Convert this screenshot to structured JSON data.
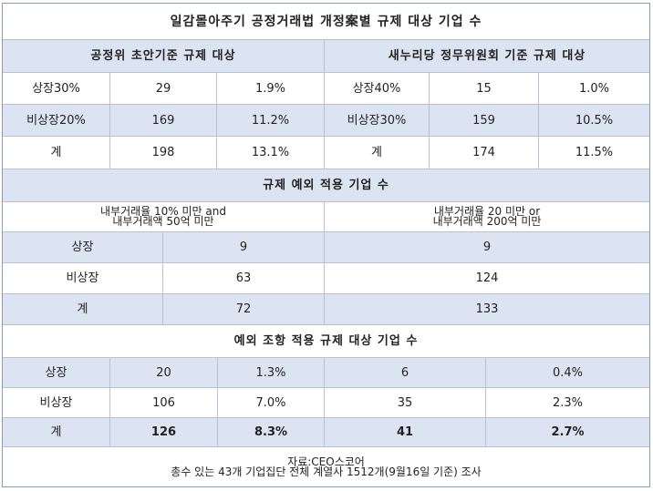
{
  "title": "일감몰아주기 공정거래법 개정案별 규제 대상 기업 수",
  "section1": {
    "left_header": "공정위 초안기준 규제 대상",
    "right_header": "새누리당 정무위원회 기준 규제 대상",
    "rows": [
      {
        "l_label": "상장30%",
        "l_count": "29",
        "l_pct": "1.9%",
        "r_label": "상장40%",
        "r_count": "15",
        "r_pct": "1.0%"
      },
      {
        "l_label": "비상장20%",
        "l_count": "169",
        "l_pct": "11.2%",
        "r_label": "비상장30%",
        "r_count": "159",
        "r_pct": "10.5%"
      },
      {
        "l_label": "계",
        "l_count": "198",
        "l_pct": "13.1%",
        "r_label": "계",
        "r_count": "174",
        "r_pct": "11.5%"
      }
    ]
  },
  "section2": {
    "header": "규제 예외 적용 기업 수",
    "left_sub_line1": "내부거래율 10% 미만 and",
    "left_sub_line2": "내부거래액 50억 미만",
    "right_sub_line1": "내부거래율 20 미만 or",
    "right_sub_line2": "내부거래액 200억  미만",
    "rows": [
      {
        "label": "상장",
        "left": "9",
        "right": "9"
      },
      {
        "label": "비상장",
        "left": "63",
        "right": "124"
      },
      {
        "label": "계",
        "left": "72",
        "right": "133"
      }
    ]
  },
  "section3": {
    "header": "예외 조항 적용 규제 대상 기업 수",
    "rows": [
      {
        "label": "상장",
        "l_count": "20",
        "l_pct": "1.3%",
        "r_count": "6",
        "r_pct": "0.4%"
      },
      {
        "label": "비상장",
        "l_count": "106",
        "l_pct": "7.0%",
        "r_count": "35",
        "r_pct": "2.3%"
      },
      {
        "label": "계",
        "l_count": "126",
        "l_pct": "8.3%",
        "r_count": "41",
        "r_pct": "2.7%"
      }
    ]
  },
  "footnote": {
    "line1": "자료:CEO스코어",
    "line2": "총수 있는 43개 기업집단 전체 계열사 1512개(9월16일 기준) 조사"
  }
}
